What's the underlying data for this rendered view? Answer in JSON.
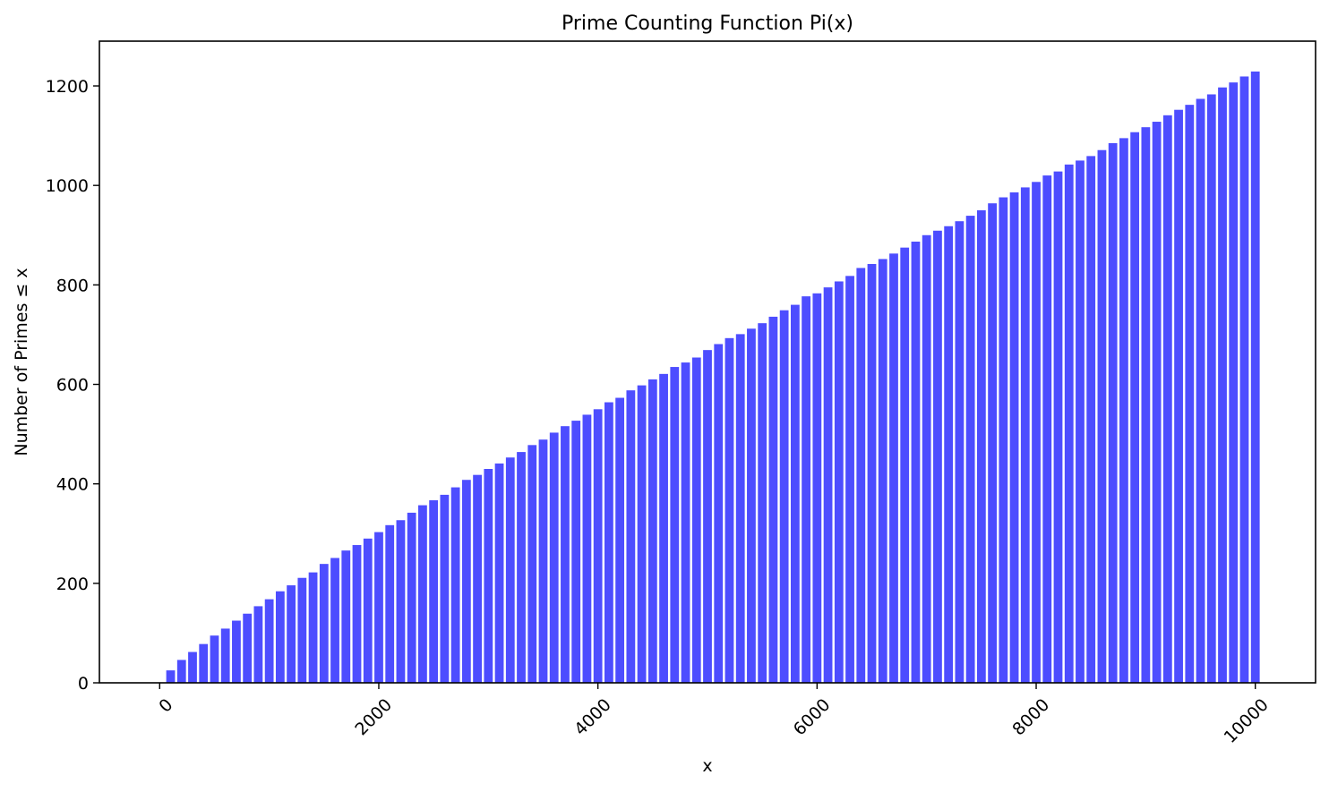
{
  "chart_data": {
    "type": "bar",
    "title": "Prime Counting Function Pi(x)",
    "xlabel": "x",
    "ylabel": "Number of Primes ≤ x",
    "xlim": [
      -550,
      10550
    ],
    "ylim": [
      0,
      1290
    ],
    "x_ticks": [
      0,
      2000,
      4000,
      6000,
      8000,
      10000
    ],
    "x_tick_rotation_deg": 45,
    "y_ticks": [
      0,
      200,
      400,
      600,
      800,
      1000,
      1200
    ],
    "bar_width": 80,
    "bar_color": "#4d4dff",
    "grid": false,
    "legend": "none",
    "x": [
      100,
      200,
      300,
      400,
      500,
      600,
      700,
      800,
      900,
      1000,
      1100,
      1200,
      1300,
      1400,
      1500,
      1600,
      1700,
      1800,
      1900,
      2000,
      2100,
      2200,
      2300,
      2400,
      2500,
      2600,
      2700,
      2800,
      2900,
      3000,
      3100,
      3200,
      3300,
      3400,
      3500,
      3600,
      3700,
      3800,
      3900,
      4000,
      4100,
      4200,
      4300,
      4400,
      4500,
      4600,
      4700,
      4800,
      4900,
      5000,
      5100,
      5200,
      5300,
      5400,
      5500,
      5600,
      5700,
      5800,
      5900,
      6000,
      6100,
      6200,
      6300,
      6400,
      6500,
      6600,
      6700,
      6800,
      6900,
      7000,
      7100,
      7200,
      7300,
      7400,
      7500,
      7600,
      7700,
      7800,
      7900,
      8000,
      8100,
      8200,
      8300,
      8400,
      8500,
      8600,
      8700,
      8800,
      8900,
      9000,
      9100,
      9200,
      9300,
      9400,
      9500,
      9600,
      9700,
      9800,
      9900,
      10000
    ],
    "values": [
      25,
      46,
      62,
      78,
      95,
      109,
      125,
      139,
      154,
      168,
      184,
      196,
      211,
      222,
      239,
      251,
      266,
      277,
      290,
      303,
      317,
      327,
      342,
      357,
      367,
      378,
      393,
      408,
      418,
      430,
      441,
      453,
      464,
      478,
      489,
      503,
      516,
      527,
      539,
      550,
      564,
      573,
      588,
      598,
      610,
      621,
      635,
      644,
      654,
      669,
      681,
      693,
      701,
      712,
      723,
      736,
      749,
      760,
      777,
      783,
      795,
      807,
      818,
      834,
      842,
      852,
      863,
      875,
      887,
      900,
      909,
      918,
      928,
      939,
      950,
      964,
      976,
      986,
      996,
      1007,
      1020,
      1028,
      1042,
      1050,
      1059,
      1071,
      1085,
      1095,
      1107,
      1117,
      1128,
      1141,
      1152,
      1162,
      1174,
      1183,
      1197,
      1207,
      1219,
      1229
    ]
  }
}
